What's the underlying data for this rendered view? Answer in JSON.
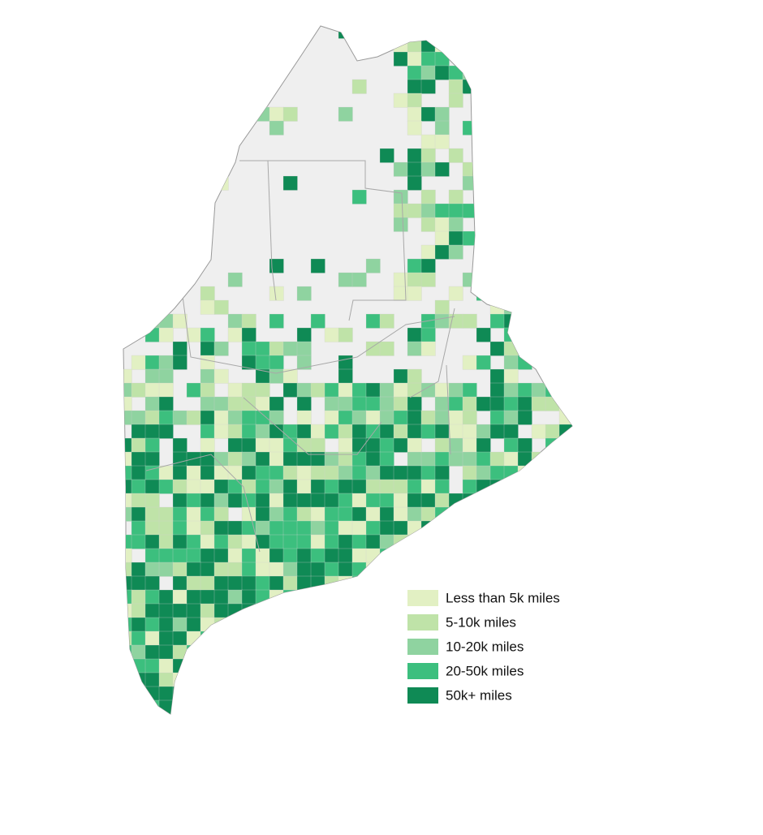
{
  "legend": {
    "items": [
      {
        "label": "Less than 5k miles",
        "color": "#e2f0c3"
      },
      {
        "label": "5-10k miles",
        "color": "#bfe3a8"
      },
      {
        "label": "10-20k miles",
        "color": "#8fd3a0"
      },
      {
        "label": "20-50k miles",
        "color": "#3cbf7e"
      },
      {
        "label": "50k+ miles",
        "color": "#0f8a55"
      }
    ]
  }
}
